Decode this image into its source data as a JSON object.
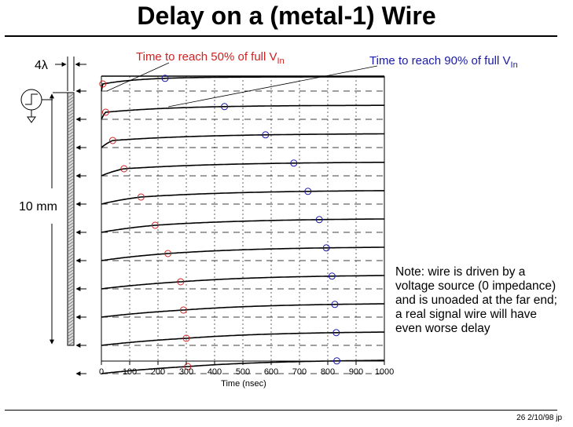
{
  "slide": {
    "title": "Delay on a (metal-1) Wire",
    "footer": "26  2/10/98  jp",
    "note": "Note:  wire is driven by a voltage source (0 impedance) and is unoaded at the far end; a real signal wire will have even worse delay"
  },
  "diagram": {
    "width_label": "4λ",
    "length_label": "10 mm",
    "label_50": {
      "prefix": "Time to reach 50% of full V",
      "sub": "In"
    },
    "label_90": {
      "prefix": "Time to reach 90% of full V",
      "sub": "In"
    },
    "colors": {
      "marker_50": "#d02020",
      "marker_90": "#1a1aa8",
      "curve": "#000000"
    }
  },
  "chart_data": {
    "type": "line",
    "xlabel": "Time (nsec)",
    "xlim": [
      0,
      1000
    ],
    "xticks": [
      0,
      100,
      200,
      300,
      400,
      500,
      600,
      700,
      800,
      900,
      1000
    ],
    "tap_count": 11,
    "t50": [
      5,
      15,
      40,
      80,
      140,
      190,
      235,
      280,
      290,
      300,
      305
    ],
    "t90": [
      225,
      435,
      580,
      680,
      730,
      770,
      795,
      815,
      825,
      830,
      832
    ]
  }
}
